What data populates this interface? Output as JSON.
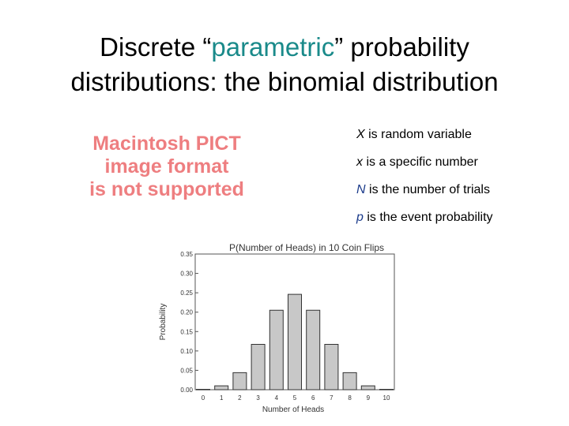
{
  "slide": {
    "title_line1_before": "Discrete “",
    "title_line1_accent": "parametric",
    "title_line1_after": "” probability",
    "title_line2": "distributions: the binomial distribution",
    "accent_color": "#1a8a8a"
  },
  "placeholder": {
    "lines": [
      "Macintosh PICT",
      "image format",
      "is not supported"
    ],
    "color": "#ee7e80"
  },
  "bullets": [
    {
      "symbol": "X",
      "text": " is random variable"
    },
    {
      "symbol": "x",
      "text": " is a specific number"
    },
    {
      "symbol": "N",
      "text": " is the number of trials"
    },
    {
      "symbol": "p",
      "text": " is the event probability"
    }
  ],
  "chart_data": {
    "type": "bar",
    "title": "P(Number of Heads) in 10 Coin Flips",
    "xlabel": "Number of Heads",
    "ylabel": "Probability",
    "categories": [
      "0",
      "1",
      "2",
      "3",
      "4",
      "5",
      "6",
      "7",
      "8",
      "9",
      "10"
    ],
    "values": [
      0.001,
      0.01,
      0.044,
      0.117,
      0.205,
      0.246,
      0.205,
      0.117,
      0.044,
      0.01,
      0.001
    ],
    "yticks": [
      "0.00",
      "0.05",
      "0.10",
      "0.15",
      "0.20",
      "0.25",
      "0.30",
      "0.35"
    ],
    "ylim": [
      0,
      0.35
    ],
    "grid": false,
    "bar_color": "#c8c8c8"
  }
}
